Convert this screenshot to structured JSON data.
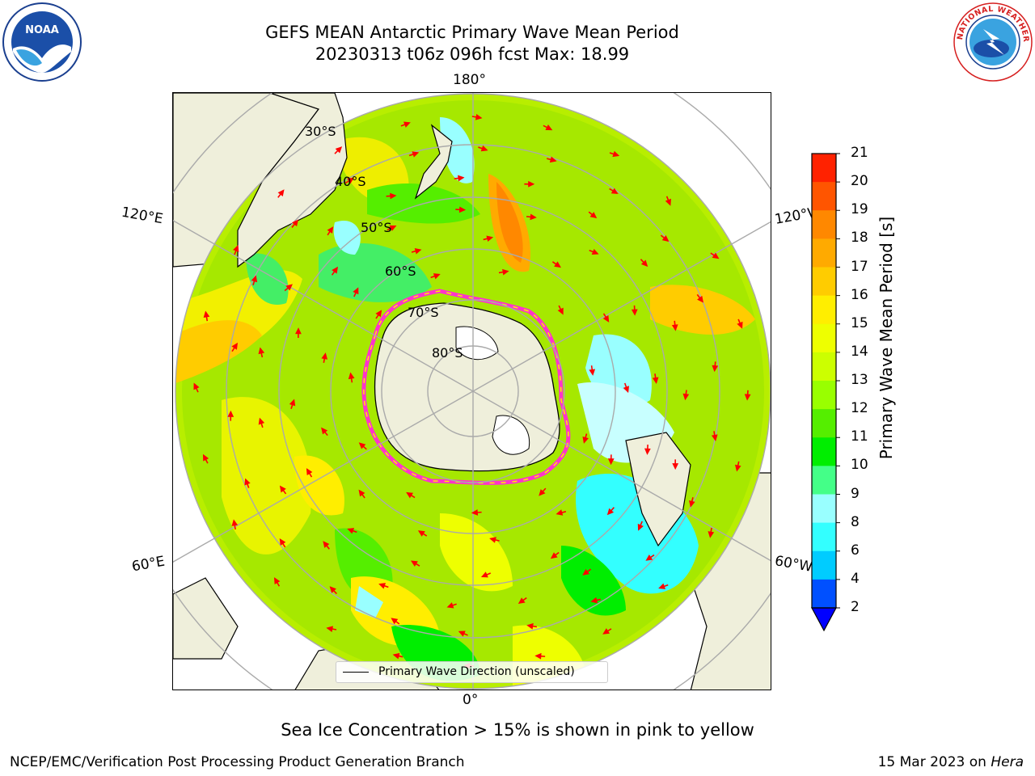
{
  "title": {
    "line1": "GEFS MEAN Antarctic Primary Wave Mean Period",
    "line2": "20230313 t06z 096h fcst   Max: 18.99"
  },
  "map": {
    "projection": "south-polar-stereographic",
    "parameter": "Primary Wave Mean Period",
    "max_value": 18.99,
    "latitude_labels": [
      "30°S",
      "40°S",
      "50°S",
      "60°S",
      "70°S",
      "80°S"
    ],
    "longitude_labels": {
      "top": "180°",
      "bottom": "0°",
      "upper_left": "120°E",
      "upper_right": "120°W",
      "lower_left": "60°E",
      "lower_right": "60°W"
    },
    "legend": "Primary Wave Direction (unscaled)"
  },
  "colorbar": {
    "label": "Primary Wave Mean Period [s]",
    "ticks": [
      "2",
      "4",
      "6",
      "8",
      "9",
      "10",
      "11",
      "12",
      "13",
      "14",
      "15",
      "16",
      "17",
      "18",
      "19",
      "20",
      "21"
    ],
    "colors": [
      "#0050ff",
      "#00ccff",
      "#33ffff",
      "#99ffff",
      "#44ff88",
      "#00ee00",
      "#55ee00",
      "#99ff00",
      "#ccff00",
      "#eeff00",
      "#ffee00",
      "#ffcc00",
      "#ffaa00",
      "#ff8800",
      "#ff5500",
      "#ff2200"
    ],
    "extend_low_color": "#0000ff",
    "units": "s"
  },
  "footnote": "Sea Ice Concentration > 15% is shown in pink to yellow",
  "credit": "NCEP/EMC/Verification Post Processing Product Generation Branch",
  "datestamp": {
    "date": "15 Mar 2023 on ",
    "host": "Hera"
  },
  "logos": {
    "left": "NOAA",
    "right": "NATIONAL WEATHER SERVICE"
  }
}
